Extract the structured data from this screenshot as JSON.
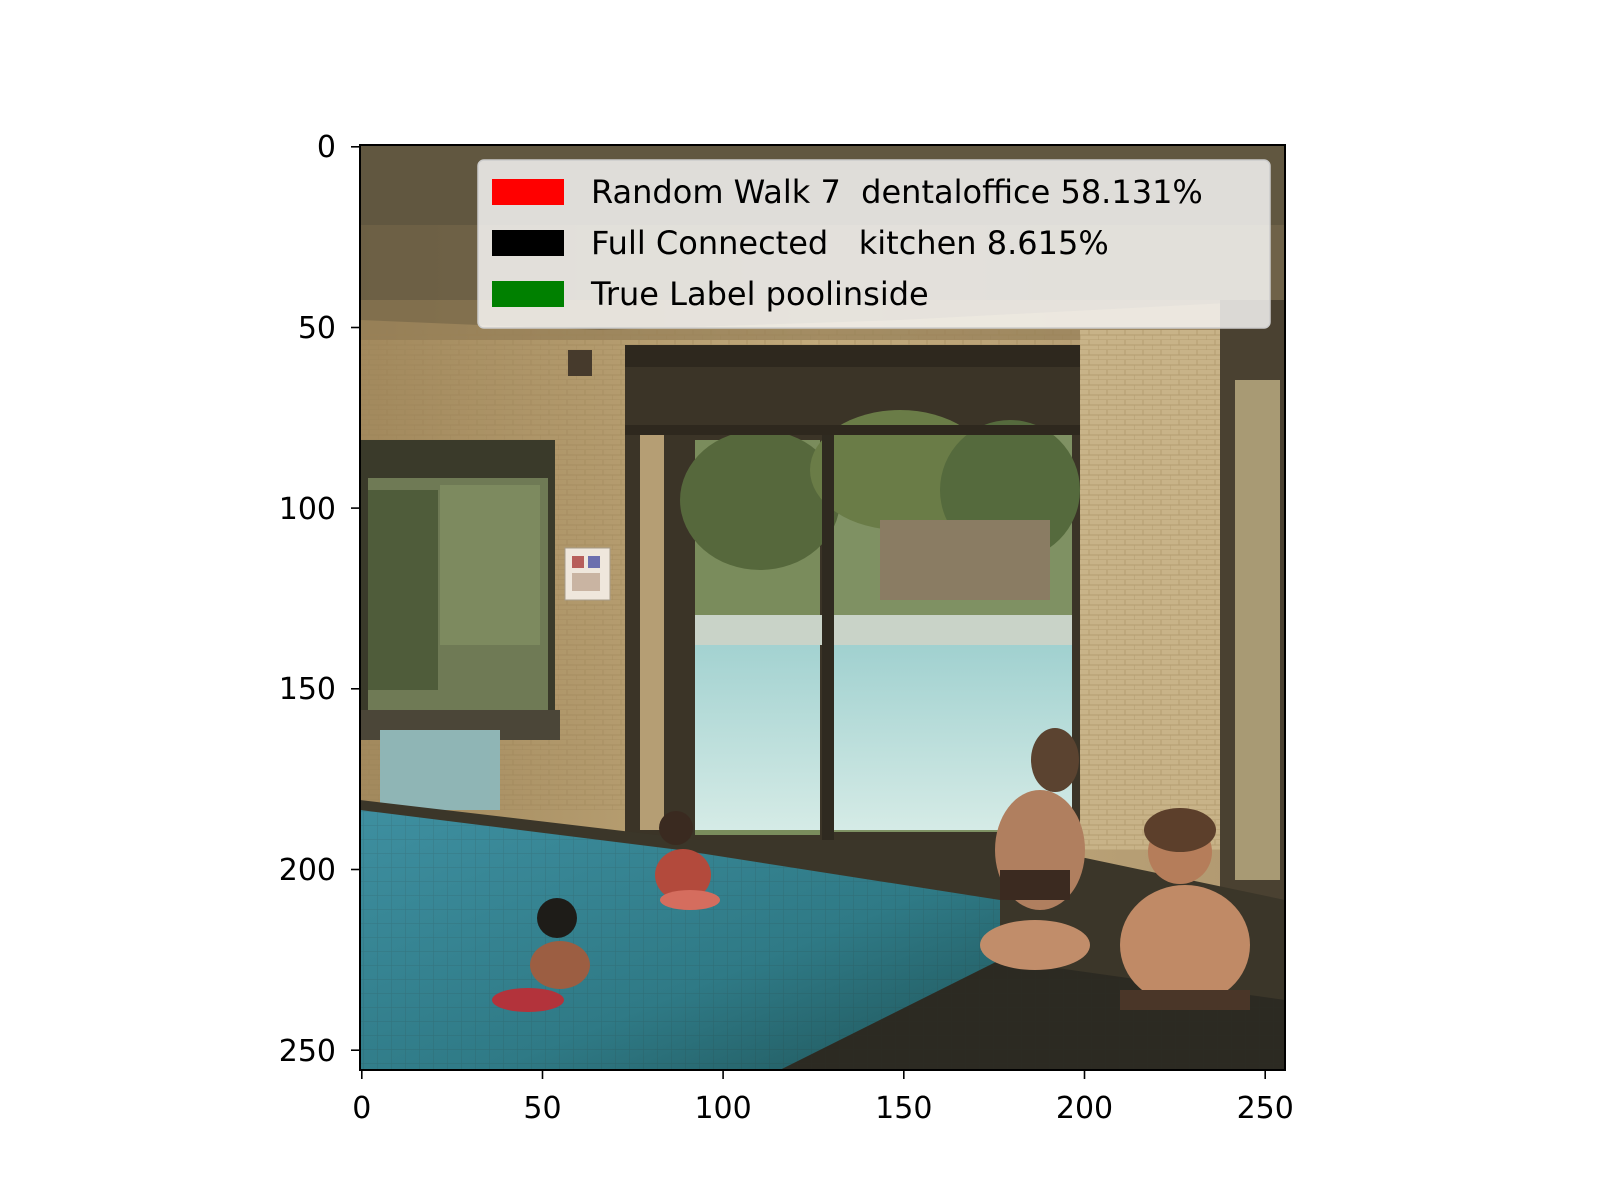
{
  "figure": {
    "axes": {
      "x_ticks": [
        "0",
        "50",
        "100",
        "150",
        "200",
        "250"
      ],
      "y_ticks": [
        "0",
        "50",
        "100",
        "150",
        "200",
        "250"
      ],
      "x_range": [
        -0.5,
        255.5
      ],
      "y_range": [
        -0.5,
        255.5
      ],
      "y_inverted": true
    },
    "legend": {
      "placement": "upper-right",
      "entries": [
        {
          "color": "#ff0000",
          "label": "Random Walk 7  dentaloffice 58.131%"
        },
        {
          "color": "#000000",
          "label": "Full Connected   kitchen 8.615%"
        },
        {
          "color": "#008000",
          "label": "True Label poolinside"
        }
      ]
    }
  }
}
